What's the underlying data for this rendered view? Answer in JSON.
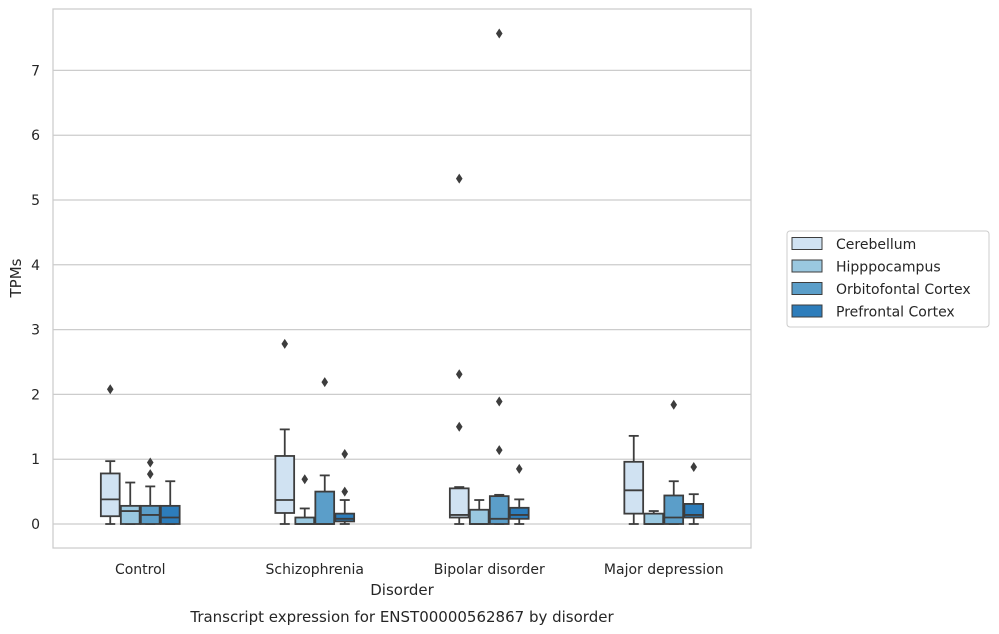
{
  "chart_data": {
    "type": "box",
    "title": "Transcript expression for ENST00000562867 by disorder",
    "xlabel": "Disorder",
    "ylabel": "TPMs",
    "ylim": [
      -0.37,
      7.95
    ],
    "yticks": [
      0,
      1,
      2,
      3,
      4,
      5,
      6,
      7
    ],
    "grid": "horizontal",
    "legend_position": "right",
    "categories": [
      "Control",
      "Schizophrenia",
      "Bipolar disorder",
      "Major depression"
    ],
    "series": [
      {
        "name": "Cerebellum",
        "color": "#d0e2f2",
        "boxes": [
          {
            "whislo": 0.0,
            "q1": 0.12,
            "med": 0.38,
            "q3": 0.78,
            "whishi": 0.97,
            "fliers": [
              2.08
            ]
          },
          {
            "whislo": 0.0,
            "q1": 0.17,
            "med": 0.37,
            "q3": 1.05,
            "whishi": 1.46,
            "fliers": [
              2.78
            ]
          },
          {
            "whislo": 0.0,
            "q1": 0.1,
            "med": 0.14,
            "q3": 0.55,
            "whishi": 0.57,
            "fliers": [
              1.5,
              2.31,
              5.33
            ]
          },
          {
            "whislo": 0.0,
            "q1": 0.16,
            "med": 0.52,
            "q3": 0.96,
            "whishi": 1.36,
            "fliers": []
          }
        ]
      },
      {
        "name": "Hipppocampus",
        "color": "#9ac8e0",
        "boxes": [
          {
            "whislo": 0.0,
            "q1": 0.0,
            "med": 0.2,
            "q3": 0.28,
            "whishi": 0.64,
            "fliers": []
          },
          {
            "whislo": 0.0,
            "q1": 0.0,
            "med": 0.0,
            "q3": 0.1,
            "whishi": 0.24,
            "fliers": [
              0.69
            ]
          },
          {
            "whislo": 0.0,
            "q1": 0.0,
            "med": 0.0,
            "q3": 0.22,
            "whishi": 0.37,
            "fliers": []
          },
          {
            "whislo": 0.0,
            "q1": 0.0,
            "med": 0.0,
            "q3": 0.16,
            "whishi": 0.2,
            "fliers": []
          }
        ]
      },
      {
        "name": "Orbitofontal Cortex",
        "color": "#5b9ec9",
        "boxes": [
          {
            "whislo": 0.0,
            "q1": 0.0,
            "med": 0.14,
            "q3": 0.28,
            "whishi": 0.58,
            "fliers": [
              0.77,
              0.95
            ]
          },
          {
            "whislo": 0.0,
            "q1": 0.0,
            "med": 0.0,
            "q3": 0.5,
            "whishi": 0.75,
            "fliers": [
              2.19
            ]
          },
          {
            "whislo": 0.0,
            "q1": 0.0,
            "med": 0.08,
            "q3": 0.43,
            "whishi": 0.45,
            "fliers": [
              1.14,
              1.89,
              7.57
            ]
          },
          {
            "whislo": 0.0,
            "q1": 0.0,
            "med": 0.1,
            "q3": 0.44,
            "whishi": 0.66,
            "fliers": [
              1.84
            ]
          }
        ]
      },
      {
        "name": "Prefrontal Cortex",
        "color": "#2d7dbb",
        "boxes": [
          {
            "whislo": 0.0,
            "q1": 0.0,
            "med": 0.1,
            "q3": 0.28,
            "whishi": 0.66,
            "fliers": []
          },
          {
            "whislo": 0.0,
            "q1": 0.04,
            "med": 0.08,
            "q3": 0.16,
            "whishi": 0.37,
            "fliers": [
              0.5,
              1.08
            ]
          },
          {
            "whislo": 0.0,
            "q1": 0.08,
            "med": 0.14,
            "q3": 0.25,
            "whishi": 0.38,
            "fliers": [
              0.85
            ]
          },
          {
            "whislo": 0.0,
            "q1": 0.1,
            "med": 0.14,
            "q3": 0.31,
            "whishi": 0.46,
            "fliers": [
              0.88
            ]
          }
        ]
      }
    ]
  }
}
